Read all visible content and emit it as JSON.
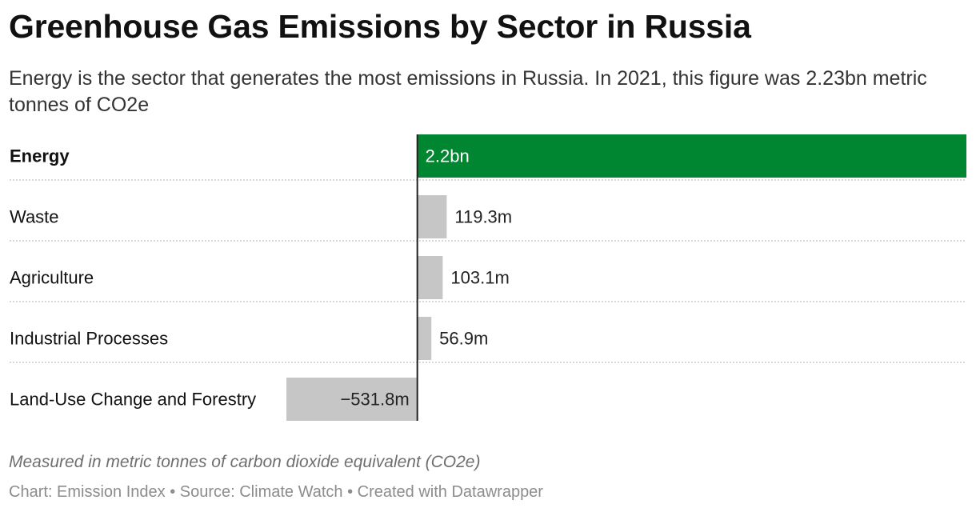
{
  "header": {
    "title": "Greenhouse Gas Emissions by Sector in Russia",
    "subtitle": "Energy is the sector that generates the most emissions in Russia. In 2021, this figure was 2.23bn metric tonnes of CO2e"
  },
  "footer": {
    "note": "Measured in metric tonnes of carbon dioxide equivalent (CO2e)",
    "source": "Chart: Emission Index • Source: Climate Watch • Created with Datawrapper"
  },
  "colors": {
    "highlight": "#008531",
    "default_bar": "#c6c6c6",
    "axis": "#222222",
    "divider": "#cccccc"
  },
  "chart_data": {
    "type": "bar",
    "orientation": "horizontal",
    "categories": [
      "Energy",
      "Waste",
      "Agriculture",
      "Industrial Processes",
      "Land-Use Change and Forestry"
    ],
    "values": [
      2230,
      119.3,
      103.1,
      56.9,
      -531.8
    ],
    "value_labels": [
      "2.2bn",
      "119.3m",
      "103.1m",
      "56.9m",
      "−531.8m"
    ],
    "unit": "million metric tonnes CO2e",
    "highlight": [
      true,
      false,
      false,
      false,
      false
    ],
    "bold_labels": [
      true,
      false,
      false,
      false,
      false
    ],
    "xlim": [
      -531.8,
      2230
    ],
    "grid": false
  }
}
